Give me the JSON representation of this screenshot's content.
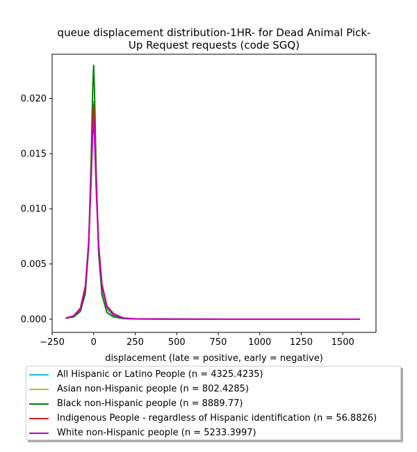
{
  "chart_data": {
    "type": "line",
    "title_lines": [
      "queue displacement distribution-1HR-  for Dead Animal Pick-",
      "Up Request  requests (code SGQ)"
    ],
    "xlabel": "displacement (late = positive, early = negative)",
    "ylabel": "",
    "xlim": [
      -250,
      1700
    ],
    "ylim": [
      -0.0012,
      0.024
    ],
    "x_ticks": [
      -250,
      0,
      250,
      500,
      750,
      1000,
      1250,
      1500
    ],
    "x_tick_labels": [
      "−250",
      "0",
      "250",
      "500",
      "750",
      "1000",
      "1250",
      "1500"
    ],
    "y_ticks": [
      0.0,
      0.005,
      0.01,
      0.015,
      0.02
    ],
    "y_tick_labels": [
      "0.000",
      "0.005",
      "0.010",
      "0.015",
      "0.020"
    ],
    "grid": false,
    "legend_position": "below",
    "series": [
      {
        "name": "All Hispanic or Latino People (n = 4325.4235)",
        "color": "#17becf",
        "x": [
          -165,
          -120,
          -80,
          -50,
          -30,
          -15,
          -5,
          0,
          5,
          15,
          30,
          50,
          80,
          120,
          180,
          250,
          400,
          800,
          1200,
          1600
        ],
        "y": [
          0.0001,
          0.0003,
          0.0009,
          0.0027,
          0.0067,
          0.013,
          0.018,
          0.0197,
          0.018,
          0.0125,
          0.0062,
          0.0027,
          0.0009,
          0.0003,
          8e-05,
          3e-05,
          1e-05,
          0.0,
          0.0,
          0.0
        ]
      },
      {
        "name": "Asian non-Hispanic people (n = 802.4285)",
        "color": "#bcbd22",
        "x": [
          -165,
          -120,
          -80,
          -50,
          -30,
          -15,
          -5,
          0,
          5,
          15,
          30,
          50,
          80,
          120,
          180,
          250,
          400,
          800,
          1200,
          1600
        ],
        "y": [
          0.0001,
          0.0003,
          0.0009,
          0.0026,
          0.0065,
          0.0127,
          0.0178,
          0.0195,
          0.0177,
          0.0122,
          0.0062,
          0.0028,
          0.001,
          0.0004,
          0.0001,
          3e-05,
          1e-05,
          0.0,
          0.0,
          0.0
        ]
      },
      {
        "name": "Black non-Hispanic people (n = 8889.77)",
        "color": "#008000",
        "x": [
          -165,
          -120,
          -80,
          -50,
          -30,
          -15,
          -5,
          0,
          5,
          15,
          30,
          50,
          80,
          120,
          180,
          250,
          400,
          800,
          1200,
          1600
        ],
        "y": [
          0.0001,
          0.0002,
          0.0007,
          0.0023,
          0.0066,
          0.0145,
          0.0212,
          0.023,
          0.0208,
          0.0135,
          0.006,
          0.0022,
          0.0006,
          0.0002,
          5e-05,
          2e-05,
          1e-05,
          0.0,
          0.0,
          0.0
        ]
      },
      {
        "name": "Indigenous People - regardless of Hispanic identification (n = 56.8826)",
        "color": "#e41a1c",
        "x": [
          -165,
          -120,
          -80,
          -50,
          -30,
          -15,
          -5,
          0,
          5,
          15,
          30,
          50,
          80,
          120,
          180,
          250,
          400,
          800,
          1200,
          1600
        ],
        "y": [
          0.0001,
          0.0003,
          0.001,
          0.003,
          0.007,
          0.0132,
          0.0178,
          0.0194,
          0.0178,
          0.0128,
          0.0068,
          0.0032,
          0.0012,
          0.0005,
          0.0001,
          3e-05,
          1e-05,
          0.0,
          0.0,
          0.0
        ]
      },
      {
        "name": "White non-Hispanic people (n = 5233.3997)",
        "color": "#bf00bf",
        "x": [
          -165,
          -120,
          -80,
          -50,
          -30,
          -15,
          -5,
          0,
          5,
          15,
          30,
          50,
          80,
          120,
          180,
          250,
          400,
          800,
          1200,
          1600
        ],
        "y": [
          0.0001,
          0.0003,
          0.0009,
          0.0028,
          0.0068,
          0.0128,
          0.017,
          0.0182,
          0.0166,
          0.012,
          0.0065,
          0.003,
          0.0011,
          0.0004,
          0.0001,
          3e-05,
          1e-05,
          0.0,
          0.0,
          0.0
        ]
      }
    ]
  }
}
